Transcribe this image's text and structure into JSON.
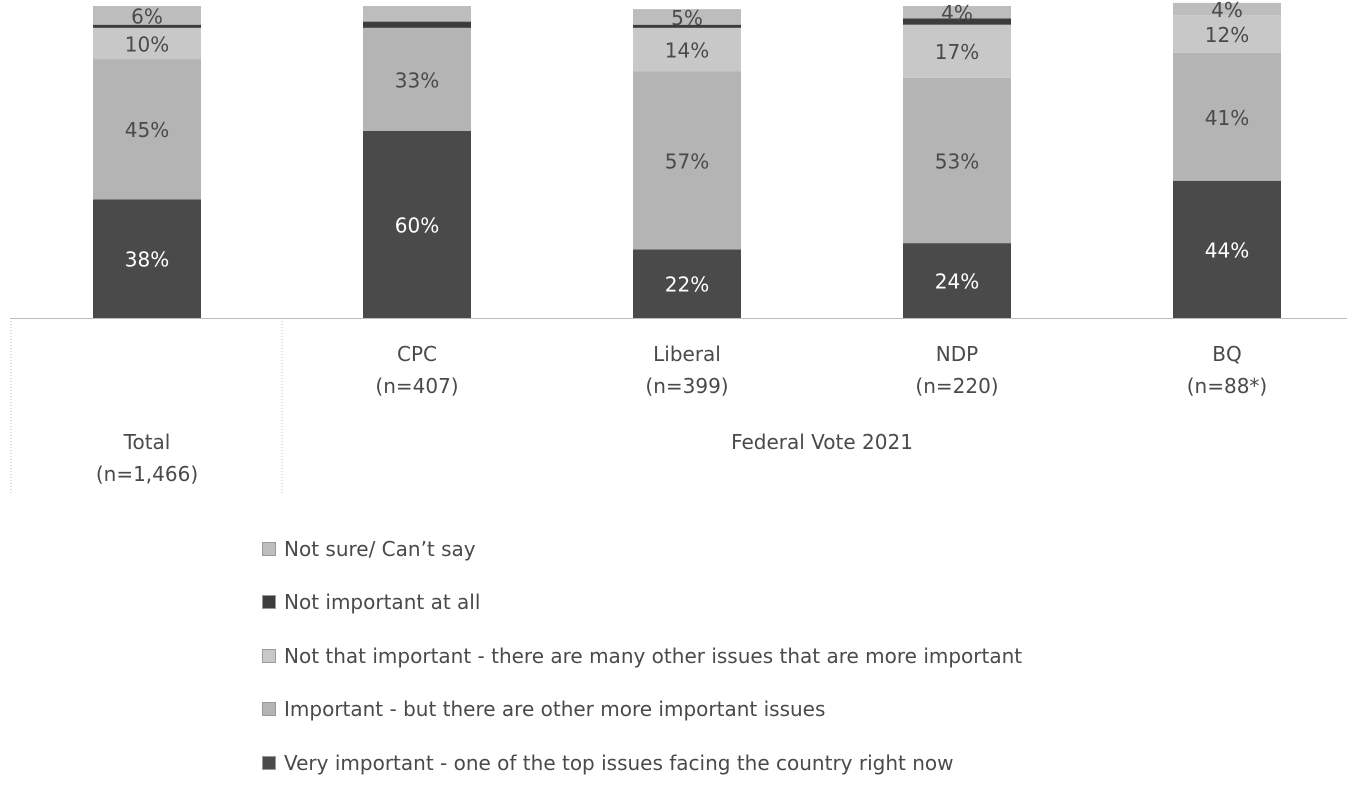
{
  "chart_data": {
    "type": "bar",
    "stacked": true,
    "percent": true,
    "ylim": [
      0,
      100
    ],
    "categories": [
      {
        "name": "Total",
        "n": "(n=1,466)"
      },
      {
        "name": "CPC",
        "n": "(n=407)"
      },
      {
        "name": "Liberal",
        "n": "(n=399)"
      },
      {
        "name": "NDP",
        "n": "(n=220)"
      },
      {
        "name": "BQ",
        "n": "(n=88*)"
      }
    ],
    "group_label": "Federal Vote 2021",
    "series": [
      {
        "name": "Very important -  one of the top issues facing the country right now",
        "color": "#4a4a4a",
        "values": [
          38,
          60,
          22,
          24,
          44
        ],
        "labels": [
          "38%",
          "60%",
          "22%",
          "24%",
          "44%"
        ]
      },
      {
        "name": "Important - but there are other more important issues",
        "color": "#b4b4b4",
        "values": [
          45,
          33,
          57,
          53,
          41
        ],
        "labels": [
          "45%",
          "33%",
          "57%",
          "53%",
          "41%"
        ]
      },
      {
        "name": "Not that important - there are many other issues that are more important",
        "color": "#c8c8c8",
        "values": [
          10,
          0,
          14,
          17,
          12
        ],
        "labels": [
          "10%",
          "",
          "14%",
          "17%",
          "12%"
        ]
      },
      {
        "name": "Not important at all",
        "color": "#3c3c3c",
        "values": [
          1,
          2,
          1,
          2,
          0
        ],
        "labels": [
          "",
          "",
          "",
          "",
          ""
        ]
      },
      {
        "name": "Not sure/ Can’t say",
        "color": "#bdbdbd",
        "values": [
          6,
          5,
          5,
          4,
          4
        ],
        "labels": [
          "6%",
          "",
          "5%",
          "4%",
          "4%"
        ]
      }
    ],
    "legend_position": "bottom-left",
    "legend_order": [
      4,
      3,
      2,
      1,
      0
    ]
  }
}
